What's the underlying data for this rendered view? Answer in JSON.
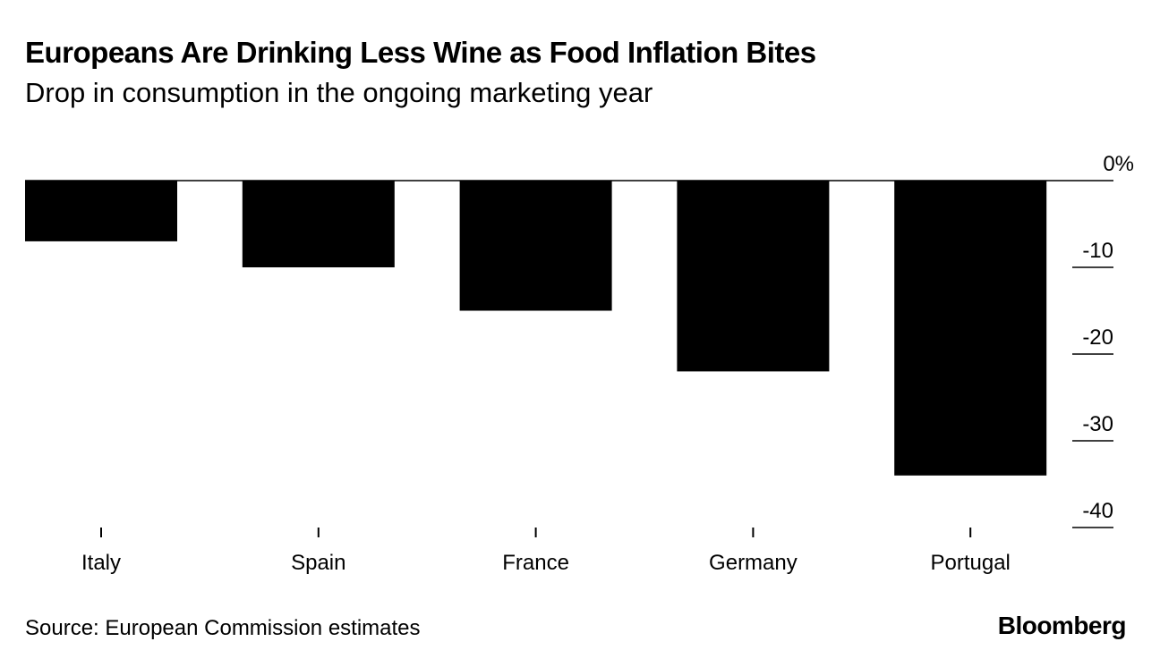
{
  "header": {
    "title": "Europeans Are Drinking Less Wine as Food Inflation Bites",
    "subtitle": "Drop in consumption in the ongoing marketing year"
  },
  "footer": {
    "source": "Source: European Commission estimates",
    "brand": "Bloomberg"
  },
  "colors": {
    "bar": "#000000",
    "background": "#ffffff",
    "text": "#000000"
  },
  "chart_data": {
    "type": "bar",
    "categories": [
      "Italy",
      "Spain",
      "France",
      "Germany",
      "Portugal"
    ],
    "values": [
      -7,
      -10,
      -15,
      -22,
      -34
    ],
    "ylim": [
      -40,
      0
    ],
    "yticks": [
      0,
      -10,
      -20,
      -30,
      -40
    ],
    "ytick_labels": [
      "0%",
      "-10",
      "-20",
      "-30",
      "-40"
    ],
    "y_axis_position": "right",
    "grid": false,
    "legend": "none"
  }
}
